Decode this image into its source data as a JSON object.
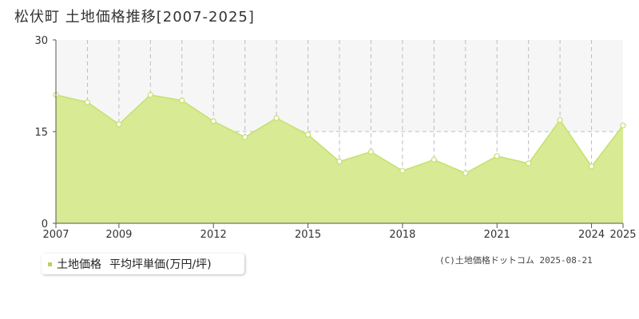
{
  "chart_data": {
    "type": "area",
    "title": "松伏町 土地価格推移[2007-2025]",
    "x": [
      2007,
      2008,
      2009,
      2010,
      2011,
      2012,
      2013,
      2014,
      2015,
      2016,
      2017,
      2018,
      2019,
      2020,
      2021,
      2022,
      2023,
      2024,
      2025
    ],
    "values": [
      21.0,
      19.8,
      16.2,
      21.0,
      20.1,
      16.7,
      14.1,
      17.2,
      14.5,
      10.1,
      11.7,
      8.6,
      10.4,
      8.2,
      11.0,
      9.8,
      16.9,
      9.3,
      16.0
    ],
    "x_tick_labels": [
      "2007",
      "2009",
      "2012",
      "2015",
      "2018",
      "2021",
      "2024",
      "2025"
    ],
    "y_ticks": [
      0,
      15,
      30
    ],
    "ylim": [
      0,
      30
    ],
    "xlim": [
      2007,
      2025
    ],
    "grid": true,
    "legend_position": "bottom-left",
    "fill_color": "#d8ea93",
    "line_color": "#c5e06e",
    "marker_fill": "#ffffff",
    "upper_band_color": "#f6f6f6"
  },
  "legend": {
    "series_label": "土地価格",
    "unit_label": "平均坪単価(万円/坪)"
  },
  "copyright": "(C)土地価格ドットコム 2025-08-21"
}
